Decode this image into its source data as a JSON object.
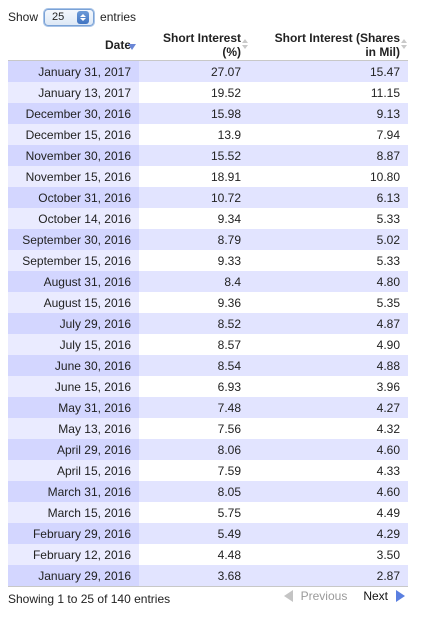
{
  "length_menu": {
    "prefix": "Show",
    "selected": "25",
    "suffix": "entries"
  },
  "table": {
    "columns": [
      {
        "label": "Date",
        "sorted": "descending"
      },
      {
        "label_line1": "Short Interest",
        "label_line2": "(%)"
      },
      {
        "label_line1": "Short Interest (Shares",
        "label_line2": "in Mil)"
      }
    ],
    "rows": [
      [
        "January 31, 2017",
        "27.07",
        "15.47"
      ],
      [
        "January 13, 2017",
        "19.52",
        "11.15"
      ],
      [
        "December 30, 2016",
        "15.98",
        "9.13"
      ],
      [
        "December 15, 2016",
        "13.9",
        "7.94"
      ],
      [
        "November 30, 2016",
        "15.52",
        "8.87"
      ],
      [
        "November 15, 2016",
        "18.91",
        "10.80"
      ],
      [
        "October 31, 2016",
        "10.72",
        "6.13"
      ],
      [
        "October 14, 2016",
        "9.34",
        "5.33"
      ],
      [
        "September 30, 2016",
        "8.79",
        "5.02"
      ],
      [
        "September 15, 2016",
        "9.33",
        "5.33"
      ],
      [
        "August 31, 2016",
        "8.4",
        "4.80"
      ],
      [
        "August 15, 2016",
        "9.36",
        "5.35"
      ],
      [
        "July 29, 2016",
        "8.52",
        "4.87"
      ],
      [
        "July 15, 2016",
        "8.57",
        "4.90"
      ],
      [
        "June 30, 2016",
        "8.54",
        "4.88"
      ],
      [
        "June 15, 2016",
        "6.93",
        "3.96"
      ],
      [
        "May 31, 2016",
        "7.48",
        "4.27"
      ],
      [
        "May 13, 2016",
        "7.56",
        "4.32"
      ],
      [
        "April 29, 2016",
        "8.06",
        "4.60"
      ],
      [
        "April 15, 2016",
        "7.59",
        "4.33"
      ],
      [
        "March 31, 2016",
        "8.05",
        "4.60"
      ],
      [
        "March 15, 2016",
        "5.75",
        "4.49"
      ],
      [
        "February 29, 2016",
        "5.49",
        "4.29"
      ],
      [
        "February 12, 2016",
        "4.48",
        "3.50"
      ],
      [
        "January 29, 2016",
        "3.68",
        "2.87"
      ]
    ]
  },
  "info": "Showing 1 to 25 of 140 entries",
  "pagination": {
    "previous": "Previous",
    "next": "Next"
  },
  "icons": {
    "sort_active": "sort-desc-icon",
    "sort_inactive": "sort-both-icon",
    "previous": "arrow-left-icon",
    "next": "arrow-right-icon"
  },
  "colors": {
    "odd_row": "#e2e4ff",
    "odd_row_sorted": "#d3d6ff",
    "even_row_sorted": "#eaebff",
    "next_arrow": "#5a7fe0"
  }
}
